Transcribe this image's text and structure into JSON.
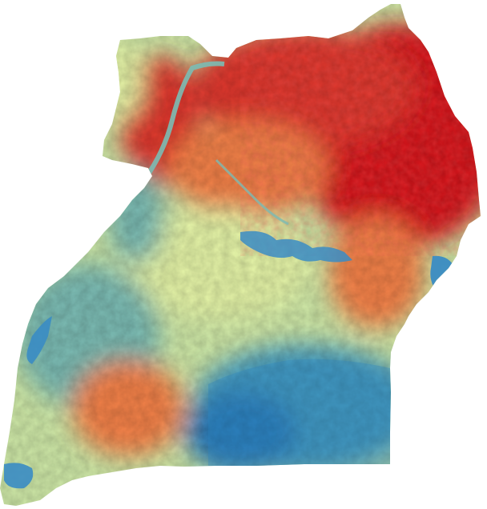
{
  "map": {
    "type": "raster-choropleth",
    "color_ramp": [
      "#2b7bba",
      "#4a9fc0",
      "#7bbcb4",
      "#abdda4",
      "#e6f5a8",
      "#fdebaa",
      "#fdbe6e",
      "#f4824a",
      "#e0392d",
      "#d7191c"
    ],
    "water_color": "#3a8cc4",
    "background": "#ffffff"
  }
}
